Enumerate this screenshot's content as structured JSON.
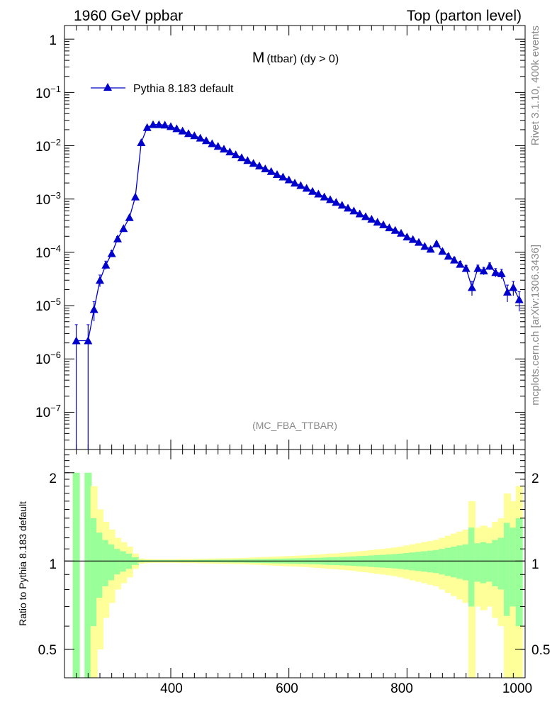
{
  "header": {
    "left": "1960 GeV ppbar",
    "right": "Top (parton level)"
  },
  "side_labels": {
    "rivet": "Rivet 3.1.10,  400k events",
    "mcplots": "mcplots.cern.ch [arXiv:1306.3436]"
  },
  "colors": {
    "series": "#0000cc",
    "band_inner": "#99ff99",
    "band_outer": "#ffff99",
    "axis": "#000000",
    "grey_text": "#888888"
  },
  "chart_data": [
    {
      "type": "line",
      "panel": "main",
      "title_main": "M",
      "title_sub": "(ttbar) (dy > 0)",
      "annotation": "(MC_FBA_TTBAR)",
      "xlabel": "",
      "ylabel": "",
      "yscale": "log",
      "xlim": [
        220,
        1000
      ],
      "ylim": [
        2e-08,
        1.8
      ],
      "ytick_labels": [
        {
          "base": "1",
          "exp": ""
        },
        {
          "base": "10",
          "exp": "−1"
        },
        {
          "base": "10",
          "exp": "−2"
        },
        {
          "base": "10",
          "exp": "−3"
        },
        {
          "base": "10",
          "exp": "−4"
        },
        {
          "base": "10",
          "exp": "−5"
        },
        {
          "base": "10",
          "exp": "−6"
        },
        {
          "base": "10",
          "exp": "−7"
        }
      ],
      "legend": {
        "position": "top-left",
        "entries": [
          "Pythia 8.183 default"
        ]
      },
      "series": [
        {
          "name": "Pythia 8.183 default",
          "x": [
            240,
            260,
            270,
            280,
            290,
            300,
            310,
            320,
            330,
            340,
            350,
            360,
            370,
            380,
            390,
            400,
            410,
            420,
            430,
            440,
            450,
            460,
            470,
            480,
            490,
            500,
            510,
            520,
            530,
            540,
            550,
            560,
            570,
            580,
            590,
            600,
            610,
            620,
            630,
            640,
            650,
            660,
            670,
            680,
            690,
            700,
            710,
            720,
            730,
            740,
            750,
            760,
            770,
            780,
            790,
            800,
            810,
            820,
            830,
            840,
            850,
            860,
            870,
            880,
            890,
            900,
            910,
            920,
            930,
            940,
            950,
            960,
            970,
            980,
            990
          ],
          "y": [
            2.2e-06,
            2.2e-06,
            8.5e-06,
            3e-05,
            5.8e-05,
            9.5e-05,
            0.00018,
            0.00028,
            0.00045,
            0.0011,
            0.0115,
            0.022,
            0.025,
            0.025,
            0.0245,
            0.023,
            0.021,
            0.019,
            0.017,
            0.0155,
            0.014,
            0.0125,
            0.011,
            0.0098,
            0.0087,
            0.0077,
            0.0068,
            0.006,
            0.0053,
            0.0047,
            0.0042,
            0.0037,
            0.0033,
            0.0029,
            0.0026,
            0.0023,
            0.002,
            0.0018,
            0.0016,
            0.0014,
            0.00125,
            0.0011,
            0.00098,
            0.00087,
            0.00077,
            0.00068,
            0.0006,
            0.00053,
            0.00047,
            0.00042,
            0.00037,
            0.00033,
            0.00029,
            0.00026,
            0.00023,
            0.000195,
            0.000175,
            0.000155,
            0.00013,
            0.000115,
            0.000145,
            0.000105,
            8.5e-05,
            7.2e-05,
            6e-05,
            5e-05,
            2.2e-05,
            5e-05,
            4.5e-05,
            5.5e-05,
            4.2e-05,
            4e-05,
            1.8e-05,
            2.2e-05,
            1.3e-05
          ],
          "yerr_rel": [
            1.0,
            1.0,
            0.4,
            0.25,
            0.18,
            0.14,
            0.1,
            0.08,
            0.06,
            0.03,
            0.01,
            0.008,
            0.007,
            0.007,
            0.007,
            0.007,
            0.007,
            0.008,
            0.008,
            0.008,
            0.009,
            0.009,
            0.01,
            0.01,
            0.011,
            0.011,
            0.012,
            0.012,
            0.013,
            0.014,
            0.015,
            0.016,
            0.017,
            0.018,
            0.019,
            0.02,
            0.021,
            0.022,
            0.023,
            0.025,
            0.026,
            0.028,
            0.03,
            0.031,
            0.033,
            0.035,
            0.037,
            0.04,
            0.042,
            0.045,
            0.048,
            0.05,
            0.053,
            0.056,
            0.06,
            0.065,
            0.07,
            0.075,
            0.08,
            0.085,
            0.09,
            0.1,
            0.11,
            0.12,
            0.13,
            0.14,
            0.3,
            0.15,
            0.16,
            0.15,
            0.18,
            0.2,
            0.35,
            0.3,
            0.4
          ]
        }
      ]
    },
    {
      "type": "area",
      "panel": "ratio",
      "ylabel": "Ratio to Pythia 8.183 default",
      "yscale": "log",
      "xlim": [
        220,
        1000
      ],
      "ylim": [
        0.4,
        2.4
      ],
      "yticks": [
        0.5,
        1,
        2
      ],
      "ytick_labels": [
        "0.5",
        "1",
        "2"
      ],
      "xticks": [
        400,
        600,
        800,
        1000
      ],
      "xtick_labels": [
        "400",
        "600",
        "800",
        "1000"
      ],
      "reference": 1
    }
  ]
}
